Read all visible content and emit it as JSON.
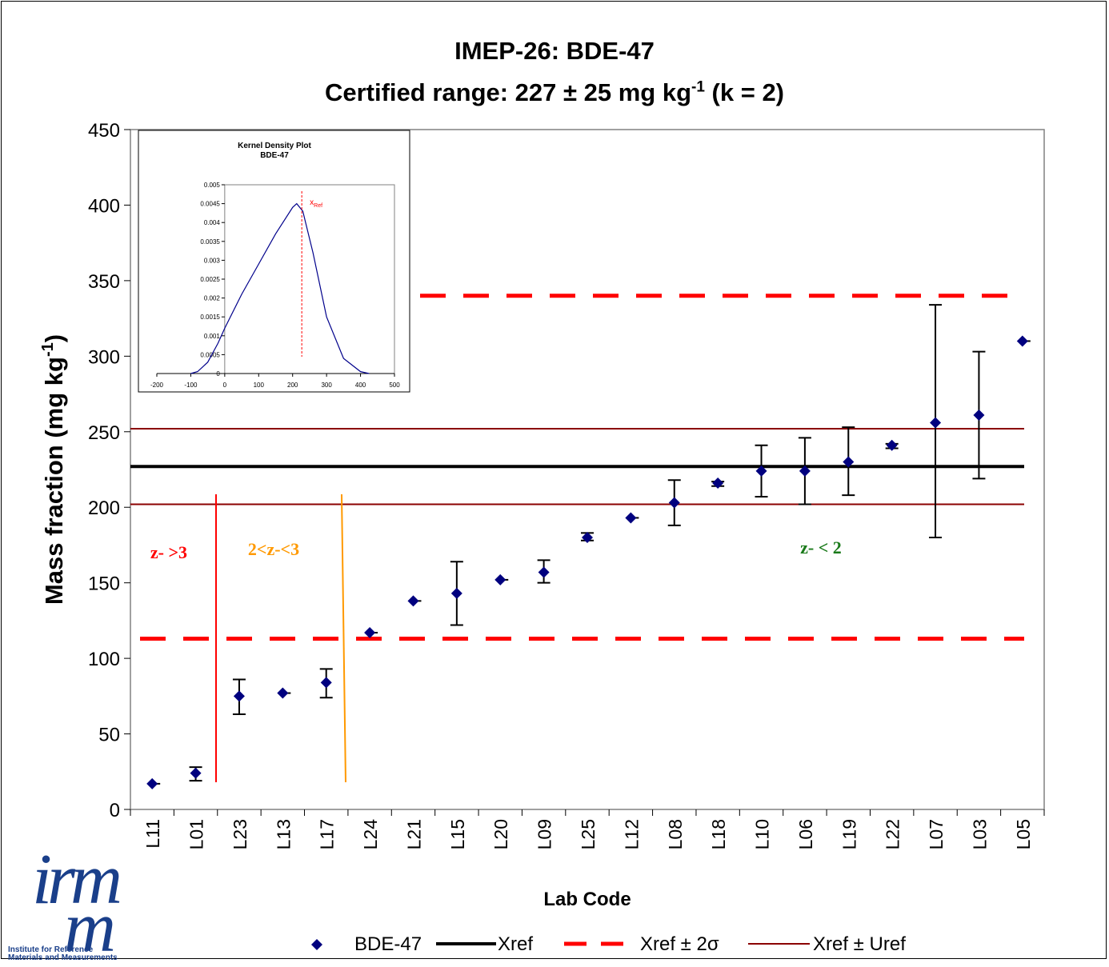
{
  "chart_data": [
    {
      "type": "scatter",
      "title": "IMEP-26: BDE-47",
      "subtitle_main": "Certified range: 227 ± 25 mg kg",
      "subtitle_sup": "-1",
      "subtitle_tail": " (k = 2)",
      "xlabel": "Lab Code",
      "ylabel_main": "Mass fraction (mg kg",
      "ylabel_sup": "-1",
      "ylabel_tail": ")",
      "ylim": [
        0,
        450
      ],
      "yticks": [
        "0",
        "50",
        "100",
        "150",
        "200",
        "250",
        "300",
        "350",
        "400",
        "450"
      ],
      "categories": [
        "L11",
        "L01",
        "L23",
        "L13",
        "L17",
        "L24",
        "L21",
        "L15",
        "L20",
        "L09",
        "L25",
        "L12",
        "L08",
        "L18",
        "L10",
        "L06",
        "L19",
        "L22",
        "L07",
        "L03",
        "L05"
      ],
      "series": [
        {
          "name": "BDE-47",
          "values": [
            17,
            24,
            75,
            77,
            84,
            117,
            138,
            143,
            152,
            157,
            180,
            193,
            203,
            216,
            224,
            224,
            230,
            241,
            256,
            261,
            310
          ],
          "err_low": [
            null,
            19,
            63,
            null,
            74,
            null,
            null,
            122,
            null,
            150,
            178,
            null,
            188,
            214,
            207,
            202,
            208,
            239,
            180,
            219,
            null
          ],
          "err_high": [
            null,
            28,
            86,
            null,
            93,
            null,
            null,
            164,
            null,
            165,
            183,
            null,
            218,
            217,
            241,
            246,
            253,
            242,
            334,
            303,
            null
          ],
          "color": "#00007f"
        }
      ],
      "reference_lines": [
        {
          "name": "Xref",
          "value": 227,
          "color": "#000000"
        },
        {
          "name": "Xref ± 2σ",
          "values": [
            113,
            340
          ],
          "color": "#ff0000"
        },
        {
          "name": "Xref ± Uref",
          "values": [
            202,
            252
          ],
          "color": "#8b0000"
        }
      ],
      "zone_labels": [
        {
          "text": "z- >3",
          "color": "#ff0000"
        },
        {
          "text": "2<z-<3",
          "color": "#ff9900"
        },
        {
          "text": "z- < 2",
          "color": "#1a7a1a"
        }
      ],
      "legend": {
        "placement": "bottom",
        "entries": [
          "BDE-47",
          "Xref",
          "Xref ± 2σ",
          "Xref ± Uref"
        ]
      },
      "grid": false
    },
    {
      "type": "line",
      "title": "Kernel Density Plot",
      "subtitle": "BDE-47",
      "xlim": [
        -200,
        500
      ],
      "ylim": [
        0,
        0.005
      ],
      "xticks": [
        "-200",
        "-100",
        "0",
        "100",
        "200",
        "300",
        "400",
        "500"
      ],
      "yticks": [
        "0",
        "0.0005",
        "0.001",
        "0.0015",
        "0.002",
        "0.0025",
        "0.003",
        "0.0035",
        "0.004",
        "0.0045",
        "0.005"
      ],
      "x": [
        -100,
        -80,
        -50,
        -20,
        0,
        50,
        100,
        150,
        200,
        212,
        230,
        260,
        300,
        350,
        400,
        425
      ],
      "y": [
        0,
        5e-05,
        0.0003,
        0.0008,
        0.0012,
        0.0021,
        0.0029,
        0.0037,
        0.0044,
        0.0045,
        0.0043,
        0.0032,
        0.0015,
        0.0004,
        5e-05,
        0
      ],
      "ref_x": 227,
      "ref_label_main": "x",
      "ref_label_sub": "Ref",
      "line_color": "#00008b",
      "ref_color": "#ff0000"
    }
  ],
  "logo": {
    "mark_top": "irm",
    "mark_bottom": "m",
    "caption_line1": "Institute for Reference",
    "caption_line2": "Materials and Measurements"
  }
}
